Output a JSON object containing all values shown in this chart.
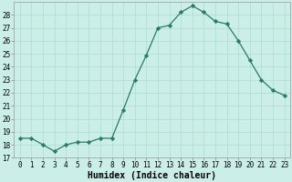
{
  "x": [
    0,
    1,
    2,
    3,
    4,
    5,
    6,
    7,
    8,
    9,
    10,
    11,
    12,
    13,
    14,
    15,
    16,
    17,
    18,
    19,
    20,
    21,
    22,
    23
  ],
  "y": [
    18.5,
    18.5,
    18.0,
    17.5,
    18.0,
    18.2,
    18.2,
    18.5,
    18.5,
    20.7,
    23.0,
    24.9,
    27.0,
    27.2,
    28.2,
    28.7,
    28.2,
    27.5,
    27.3,
    26.0,
    24.5,
    23.0,
    22.2,
    21.8
  ],
  "line_color": "#2a7a6a",
  "marker": "D",
  "markersize": 2.2,
  "bg_color": "#cceee8",
  "grid_color": "#aaddcc",
  "xlabel": "Humidex (Indice chaleur)",
  "ylim": [
    17,
    29
  ],
  "yticks": [
    17,
    18,
    19,
    20,
    21,
    22,
    23,
    24,
    25,
    26,
    27,
    28
  ],
  "xticks": [
    0,
    1,
    2,
    3,
    4,
    5,
    6,
    7,
    8,
    9,
    10,
    11,
    12,
    13,
    14,
    15,
    16,
    17,
    18,
    19,
    20,
    21,
    22,
    23
  ],
  "xlim": [
    -0.5,
    23.5
  ],
  "tick_fontsize": 5.5,
  "xlabel_fontsize": 7.0,
  "linewidth": 0.9
}
